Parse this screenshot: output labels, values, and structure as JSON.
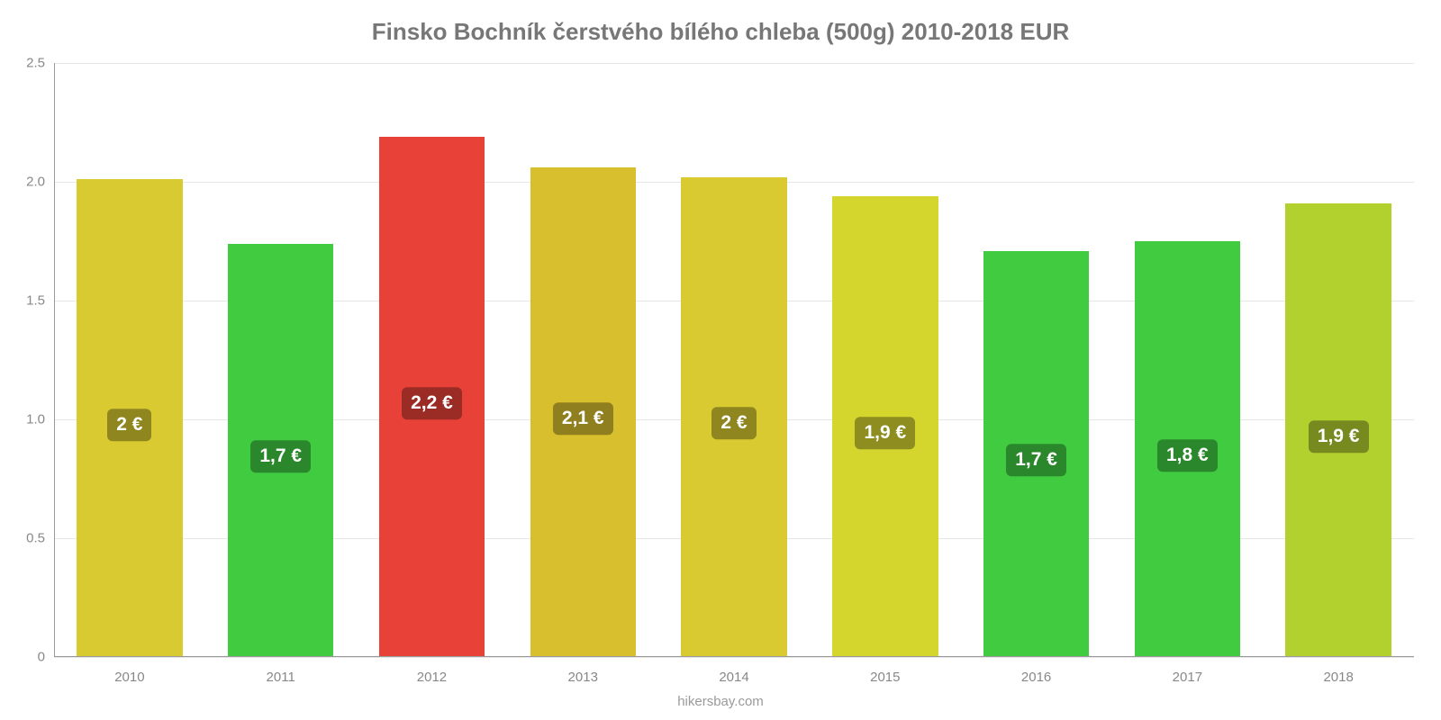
{
  "chart": {
    "type": "bar",
    "title": "Finsko Bochník čerstvého bílého chleba (500g) 2010-2018 EUR",
    "title_fontsize": 26,
    "title_color": "#777777",
    "footer": "hikersbay.com",
    "background_color": "#ffffff",
    "grid_color": "#e6e6e6",
    "axis_color": "#999999",
    "tick_label_color": "#888888",
    "tick_fontsize": 15,
    "ylim": [
      0,
      2.5
    ],
    "yticks": [
      0,
      0.5,
      1.0,
      1.5,
      2.0,
      2.5
    ],
    "ytick_labels": [
      "0",
      "0.5",
      "1.0",
      "1.5",
      "2.0",
      "2.5"
    ],
    "bar_width_pct": 70,
    "bar_label_fontsize": 21,
    "categories": [
      "2010",
      "2011",
      "2012",
      "2013",
      "2014",
      "2015",
      "2016",
      "2017",
      "2018"
    ],
    "values": [
      2.01,
      1.74,
      2.19,
      2.06,
      2.02,
      1.94,
      1.71,
      1.75,
      1.91
    ],
    "display_labels": [
      "2 €",
      "1,7 €",
      "2,2 €",
      "2,1 €",
      "2 €",
      "1,9 €",
      "1,7 €",
      "1,8 €",
      "1,9 €"
    ],
    "bar_colors": [
      "#d8ca30",
      "#40cb40",
      "#e74138",
      "#d8bf2e",
      "#d8ca30",
      "#d4d62e",
      "#40cb40",
      "#40cb40",
      "#b2d12f"
    ],
    "label_bg_colors": [
      "#8f8620",
      "#2b872b",
      "#9a2c25",
      "#8f7f1f",
      "#8f8620",
      "#8d8e1f",
      "#2b872b",
      "#2b872b",
      "#768a20"
    ]
  }
}
